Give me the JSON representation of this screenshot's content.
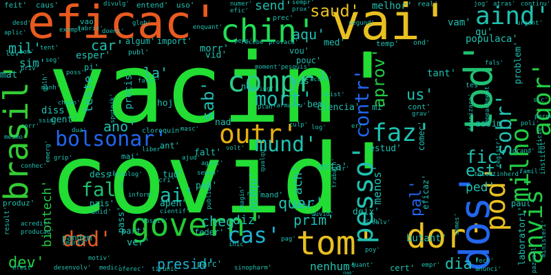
{
  "background": "#000000",
  "words": [
    {
      "text": "vacin'",
      "color": "#22dd33"
    },
    {
      "text": "covid'",
      "color": "#22dd33"
    },
    {
      "text": "eficac'",
      "color": "#e85a20"
    },
    {
      "text": "vai'",
      "color": "#e8c020"
    },
    {
      "text": "chin'",
      "color": "#22dd55"
    },
    {
      "text": "aind'",
      "color": "#20c0b0"
    },
    {
      "text": "tod'",
      "color": "#20c070"
    },
    {
      "text": "brasil'",
      "color": "#33cc33"
    },
    {
      "text": "compr'",
      "color": "#2bcc88"
    },
    {
      "text": "bolsonar'",
      "color": "#2266ee"
    },
    {
      "text": "govern'",
      "color": "#22cc33"
    },
    {
      "text": "tom'",
      "color": "#e8c020"
    },
    {
      "text": "dor'",
      "color": "#e8c020"
    },
    {
      "text": "dos'",
      "color": "#2266ee"
    },
    {
      "text": "pod'",
      "color": "#e8c020"
    },
    {
      "text": "anvis'",
      "color": "#22cc44"
    },
    {
      "text": "milho'",
      "color": "#22cc44"
    },
    {
      "text": "agor'",
      "color": "#22cc44"
    },
    {
      "text": "outr'",
      "color": "#e8b010"
    },
    {
      "text": "mund'",
      "color": "#20c0b0"
    },
    {
      "text": "faz'",
      "color": "#20c0b0"
    },
    {
      "text": "fal'",
      "color": "#20c070"
    },
    {
      "text": "dad'",
      "color": "#e85a20"
    },
    {
      "text": "cas'",
      "color": "#20b0d0"
    },
    {
      "text": "ai'",
      "color": "#20c0b0"
    },
    {
      "text": "pesso'",
      "color": "#20c0b0"
    },
    {
      "text": "mort'",
      "color": "#20c0b0"
    },
    {
      "text": "sab'",
      "color": "#20c0b0"
    },
    {
      "text": "contr'",
      "color": "#2266ee"
    },
    {
      "text": "aprov'",
      "color": "#22cc44"
    },
    {
      "text": "fic'",
      "color": "#20c0b0"
    },
    {
      "text": "est'",
      "color": "#20c0b0"
    },
    {
      "text": "sobr'",
      "color": "#20c0b0"
    },
    {
      "text": "saud'",
      "color": "#e8c020"
    },
    {
      "text": "aqu'",
      "color": "#20c0b0"
    },
    {
      "text": "mil'",
      "color": "#20c0b0"
    },
    {
      "text": "car'",
      "color": "#20c0b0"
    },
    {
      "text": "quer'",
      "color": "#20c0b0"
    },
    {
      "text": "diz'",
      "color": "#20c0b0"
    },
    {
      "text": "cheg'",
      "color": "#20c0b0"
    },
    {
      "text": "dev'",
      "color": "#22cc44"
    },
    {
      "text": "dia'",
      "color": "#20c0b0"
    },
    {
      "text": "prim'",
      "color": "#20c0b0"
    },
    {
      "text": "presid'",
      "color": "#20b0d0"
    },
    {
      "text": "pal'",
      "color": "#2266ee"
    },
    {
      "text": "us'",
      "color": "#20c0b0"
    },
    {
      "text": "ano'",
      "color": "#20c0b0"
    },
    {
      "text": "la'",
      "color": "#20c0b0"
    },
    {
      "text": "teste",
      "color": "#20c0b0"
    },
    {
      "text": "biontech'",
      "color": "#22cc44"
    },
    {
      "text": "ped'",
      "color": "#20c0b0"
    },
    {
      "text": "send'",
      "color": "#20c0b0"
    },
    {
      "text": "morr'",
      "color": "#20c0b0"
    },
    {
      "text": "menos'",
      "color": "#20c0b0"
    },
    {
      "text": "nenhum'",
      "color": "#20c0b0"
    },
    {
      "text": "butant'",
      "color": "#20c0b0"
    },
    {
      "text": "tant'",
      "color": "#20c0b0"
    },
    {
      "text": "melhor'",
      "color": "#20c0b0"
    },
    {
      "text": "populaca'",
      "color": "#20c0b0"
    },
    {
      "text": "problem'",
      "color": "#20c0b0"
    },
    {
      "text": "laboratori'",
      "color": "#20c0b0"
    },
    {
      "text": "assim'",
      "color": "#20c0b0"
    },
    {
      "text": "precis'",
      "color": "#20c0b0"
    },
    {
      "text": "gent'",
      "color": "#20c0b0"
    },
    {
      "text": "pandem'",
      "color": "#20c0b0"
    },
    {
      "text": "feder'",
      "color": "#20c0b0"
    },
    {
      "text": "ciencia'",
      "color": "#20c0b0"
    },
    {
      "text": "pais'",
      "color": "#20c0b0"
    },
    {
      "text": "enta'",
      "color": "#20c0b0"
    },
    {
      "text": "estud'",
      "color": "#20c0b0"
    },
    {
      "text": "nad'",
      "color": "#20c0b0"
    },
    {
      "text": "falt'",
      "color": "#20c0b0"
    },
    {
      "text": "tud'",
      "color": "#20c0b0"
    },
    {
      "text": "parc'",
      "color": "#20c0b0"
    },
    {
      "text": "deix'",
      "color": "#20c0b0"
    },
    {
      "text": "hoj'",
      "color": "#20c0b0"
    },
    {
      "text": "diss'",
      "color": "#20c0b0"
    },
    {
      "text": "sim'",
      "color": "#20c0b0"
    },
    {
      "text": "mat'",
      "color": "#20c0b0"
    },
    {
      "text": "apen'",
      "color": "#20c0b0"
    },
    {
      "text": "peg'",
      "color": "#20c0b0"
    },
    {
      "text": "vid'",
      "color": "#20c0b0"
    },
    {
      "text": "ach'",
      "color": "#20c0b0"
    },
    {
      "text": "porqu'",
      "color": "#20c0b0"
    },
    {
      "text": "bem'",
      "color": "#20c0b0"
    },
    {
      "text": "comec'",
      "color": "#20c0b0"
    },
    {
      "text": "eficaz'",
      "color": "#20c0b0"
    },
    {
      "text": "vam'",
      "color": "#20c0b0"
    },
    {
      "text": "qu'",
      "color": "#20c0b0"
    },
    {
      "text": "nov'",
      "color": "#20c0b0"
    },
    {
      "text": "med'",
      "color": "#20c0b0"
    },
    {
      "text": "ver'",
      "color": "#20c0b0"
    },
    {
      "text": "dess'",
      "color": "#20c0b0"
    },
    {
      "text": "part'",
      "color": "#20c0b0"
    },
    {
      "text": "mand'",
      "color": "#20c0b0"
    },
    {
      "text": "cert'",
      "color": "#20c0b0"
    },
    {
      "text": "publ'",
      "color": "#20c0b0"
    },
    {
      "text": "vou'",
      "color": "#20c0b0"
    },
    {
      "text": "pouc'",
      "color": "#20c0b0"
    },
    {
      "text": "pass'",
      "color": "#20c0b0"
    },
    {
      "text": "esper'",
      "color": "#20c0b0"
    },
    {
      "text": "algum'",
      "color": "#20c0b0"
    },
    {
      "text": "import'",
      "color": "#20c0b0"
    },
    {
      "text": "temp'",
      "color": "#20c0b0"
    },
    {
      "text": "mi'",
      "color": "#20c0b0"
    },
    {
      "text": "cont'",
      "color": "#20c0b0"
    },
    {
      "text": "pi'",
      "color": "#20c0b0"
    },
    {
      "text": "feit'",
      "color": "#20c0b0"
    },
    {
      "text": "caus'",
      "color": "#20c0b0"
    },
    {
      "text": "uso'",
      "color": "#20c0b0"
    },
    {
      "text": "entend'",
      "color": "#20c0b0"
    },
    {
      "text": "real'",
      "color": "#20c0b0"
    },
    {
      "text": "urgent'",
      "color": "#20c0b0"
    },
    {
      "text": "ond'",
      "color": "#20c0b0"
    },
    {
      "text": "ant'",
      "color": "#20c0b0"
    },
    {
      "text": "mai'",
      "color": "#20c0b0"
    },
    {
      "text": "result'",
      "color": "#20c0b0"
    },
    {
      "text": "produz'",
      "color": "#20c0b0"
    },
    {
      "text": "institut'",
      "color": "#20c0b0"
    },
    {
      "text": "paul'",
      "color": "#20c0b0"
    },
    {
      "text": "tes'",
      "color": "#20c0b0"
    },
    {
      "text": "cri'",
      "color": "#20c0b0"
    },
    {
      "text": "unid'",
      "color": "#20c0b0"
    },
    {
      "text": "cloroquin'",
      "color": "#20c0b0"
    },
    {
      "text": "prox'",
      "color": "#20c0b0"
    },
    {
      "text": "jog'",
      "color": "#20c0b0"
    },
    {
      "text": "atras'",
      "color": "#20c0b0"
    },
    {
      "text": "continu'",
      "color": "#20c0b0"
    },
    {
      "text": "doenc'",
      "color": "#20c0b0"
    },
    {
      "text": "divulg'",
      "color": "#20c0b0"
    },
    {
      "text": "numer'",
      "color": "#20c0b0"
    },
    {
      "text": "efic'",
      "color": "#20c0b0"
    },
    {
      "text": "segund'",
      "color": "#20c0b0"
    },
    {
      "text": "glob'",
      "color": "#20c0b0"
    },
    {
      "text": "enquant'",
      "color": "#20c0b0"
    },
    {
      "text": "vao'",
      "color": "#20c0b0"
    },
    {
      "text": "fabric'",
      "color": "#20c0b0"
    },
    {
      "text": "exempl'",
      "color": "#20c0b0"
    },
    {
      "text": "aplic'",
      "color": "#20c0b0"
    },
    {
      "text": "desd'",
      "color": "#20c0b0"
    },
    {
      "text": "lev'",
      "color": "#20c0b0"
    },
    {
      "text": "bom'",
      "color": "#20c0b0"
    },
    {
      "text": "tent'",
      "color": "#20c0b0"
    },
    {
      "text": "priv'",
      "color": "#20c0b0"
    },
    {
      "text": "seg'",
      "color": "#20c0b0"
    },
    {
      "text": "favor'",
      "color": "#20c0b0"
    },
    {
      "text": "poss'",
      "color": "#20c0b0"
    },
    {
      "text": "moment'",
      "color": "#20c0b0"
    },
    {
      "text": "pesquis'",
      "color": "#20c0b0"
    },
    {
      "text": "plan'",
      "color": "#20c0b0"
    },
    {
      "text": "farmaceu'",
      "color": "#20c0b0"
    },
    {
      "text": "exist'",
      "color": "#20c0b0"
    },
    {
      "text": "acord'",
      "color": "#20c0b0"
    },
    {
      "text": "cois'",
      "color": "#20c0b0"
    },
    {
      "text": "recebe'",
      "color": "#20c0b0"
    },
    {
      "text": "provaca'",
      "color": "#20c0b0"
    },
    {
      "text": "pens'",
      "color": "#20c0b0"
    },
    {
      "text": "sering'",
      "color": "#20c0b0"
    },
    {
      "text": "culp'",
      "color": "#20c0b0"
    },
    {
      "text": "log'",
      "color": "#20c0b0"
    },
    {
      "text": "err'",
      "color": "#20c0b0"
    },
    {
      "text": "grav'",
      "color": "#20c0b0"
    },
    {
      "text": "emerg'",
      "color": "#20c0b0"
    },
    {
      "text": "grip'",
      "color": "#20c0b0"
    },
    {
      "text": "semes'",
      "color": "#20c0b0"
    },
    {
      "text": "agost'",
      "color": "#20c0b0"
    },
    {
      "text": "ajud'",
      "color": "#20c0b0"
    },
    {
      "text": "masc'",
      "color": "#20c0b0"
    },
    {
      "text": "liber'",
      "color": "#20c0b0"
    },
    {
      "text": "dua'",
      "color": "#20c0b0"
    },
    {
      "text": "corr'",
      "color": "#20c0b0"
    },
    {
      "text": "mesmo'",
      "color": "#20c0b0"
    },
    {
      "text": "conhec'",
      "color": "#20c0b0"
    },
    {
      "text": "acredit'",
      "color": "#20c0b0"
    },
    {
      "text": "imuniz'",
      "color": "#20c0b0"
    },
    {
      "text": "motiv'",
      "color": "#20c0b0"
    },
    {
      "text": "efeit'",
      "color": "#20c0b0"
    },
    {
      "text": "desenvolv'",
      "color": "#20c0b0"
    },
    {
      "text": "medic'",
      "color": "#20c0b0"
    },
    {
      "text": "oferec'",
      "color": "#20c0b0"
    },
    {
      "text": "tirunic'",
      "color": "#20c0b0"
    },
    {
      "text": "inic'",
      "color": "#20c0b0"
    },
    {
      "text": "quant'",
      "color": "#20c0b0"
    },
    {
      "text": "sinopharm'",
      "color": "#20c0b0"
    },
    {
      "text": "empr'",
      "color": "#20c0b0"
    },
    {
      "text": "anunci'",
      "color": "#20c0b0"
    },
    {
      "text": "fech'",
      "color": "#20c0b0"
    },
    {
      "text": "pazuell'",
      "color": "#20c0b0"
    },
    {
      "text": "ministeri'",
      "color": "#20c0b0"
    },
    {
      "text": "registr'",
      "color": "#20c0b0"
    },
    {
      "text": "impeachment'",
      "color": "#20c0b0"
    },
    {
      "text": "tocantinherd'",
      "color": "#20c0b0"
    },
    {
      "text": "famil'",
      "color": "#20c0b0"
    },
    {
      "text": "grand'",
      "color": "#20c0b0"
    },
    {
      "text": "poli'",
      "color": "#20c0b0"
    },
    {
      "text": "pergunt'",
      "color": "#20c0b0"
    },
    {
      "text": "suficie'",
      "color": "#20c0b0"
    },
    {
      "text": "imunizaca'",
      "color": "#20c0b0"
    },
    {
      "text": "fals'",
      "color": "#20c0b0"
    },
    {
      "text": "sair'",
      "color": "#20c0b0"
    },
    {
      "text": "trabalh'",
      "color": "#20c0b0"
    },
    {
      "text": "parec'",
      "color": "#20c0b0"
    },
    {
      "text": "duvid'",
      "color": "#20c0b0"
    },
    {
      "text": "acab'",
      "color": "#20c0b0"
    },
    {
      "text": "sputnik'",
      "color": "#20c0b0"
    },
    {
      "text": "inform'",
      "color": "#20c0b0"
    },
    {
      "text": "hospit'",
      "color": "#20c0b0"
    },
    {
      "text": "cientif'",
      "color": "#20c0b0"
    },
    {
      "text": "seman'",
      "color": "#20c0b0"
    },
    {
      "text": "tecnolog'",
      "color": "#20c0b0"
    },
    {
      "text": "imagin'",
      "color": "#20c0b0"
    },
    {
      "text": "volt'",
      "color": "#20c0b0"
    },
    {
      "text": "rio'",
      "color": "#20c0b0"
    },
    {
      "text": "qualqu'",
      "color": "#20c0b0"
    },
    {
      "text": "publicac'",
      "color": "#20c0b0"
    },
    {
      "text": "producao'",
      "color": "#20c0b0"
    },
    {
      "text": "pag'",
      "color": "#20c0b0"
    },
    {
      "text": "poy'",
      "color": "#20c0b0"
    },
    {
      "text": "sempr'",
      "color": "#20c0b0"
    },
    {
      "text": "prec'",
      "color": "#20c0b0"
    },
    {
      "text": "manh'",
      "color": "#20c0b0"
    },
    {
      "text": "ssim'",
      "color": "#20c0b0"
    },
    {
      "text": "gulh'",
      "color": "#20c0b0"
    },
    {
      "text": "chamo'",
      "color": "#20c0b0"
    },
    {
      "text": "sic'",
      "color": "#20c0b0"
    },
    {
      "text": "calv'",
      "color": "#20c0b0"
    },
    {
      "text": "nao'",
      "color": "#20c0b0"
    }
  ]
}
